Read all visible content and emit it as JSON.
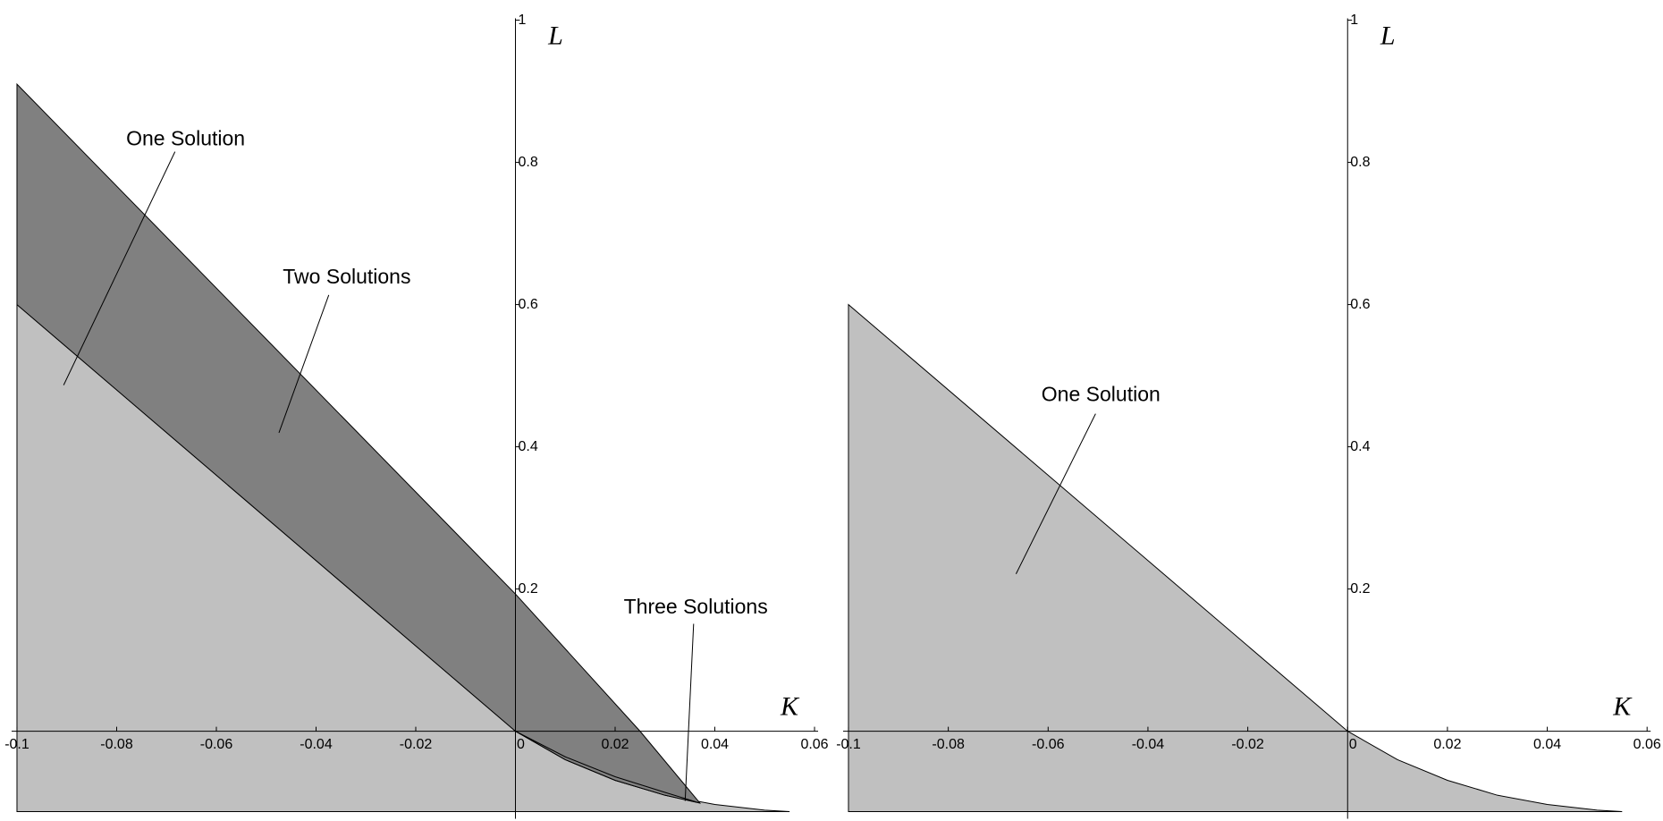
{
  "chart_data": [
    {
      "type": "region",
      "xlabel": "K",
      "ylabel": "L",
      "xlim": [
        -0.1,
        0.06
      ],
      "ylim": [
        -0.113,
        1
      ],
      "xticks": [
        -0.1,
        -0.08,
        -0.06,
        -0.04,
        -0.02,
        0,
        0.02,
        0.04,
        0.06
      ],
      "yticks": [
        0.2,
        0.4,
        0.6,
        0.8,
        1
      ],
      "series": [
        {
          "color": "#c0c0c0",
          "x": [
            -0.1,
            -0.1,
            0,
            0.01,
            0.02,
            0.03,
            0.04,
            0.05,
            0.055
          ],
          "values": [
            -0.113,
            0.6,
            0,
            -0.04,
            -0.069,
            -0.09,
            -0.103,
            -0.111,
            -0.113
          ]
        },
        {
          "color": "#808080",
          "x": [
            -0.1,
            -0.1,
            0,
            0.025,
            0.037,
            0.03,
            0.02,
            0.01,
            0
          ],
          "values": [
            0.6,
            0.91,
            0.193,
            0,
            -0.101,
            -0.09,
            -0.069,
            -0.04,
            0
          ]
        },
        {
          "color": "#808080",
          "x": [
            0,
            0.01,
            0.02,
            0.03,
            0.037,
            0.03,
            0.02,
            0.01
          ],
          "values": [
            0,
            -0.036,
            -0.064,
            -0.086,
            -0.101,
            -0.09,
            -0.069,
            -0.04
          ]
        }
      ],
      "annotations": [
        {
          "text": "One Solution"
        },
        {
          "text": "Two Solutions"
        },
        {
          "text": "Three Solutions"
        }
      ]
    },
    {
      "type": "region",
      "xlabel": "K",
      "ylabel": "L",
      "xlim": [
        -0.1,
        0.06
      ],
      "ylim": [
        -0.113,
        1
      ],
      "xticks": [
        -0.1,
        -0.08,
        -0.06,
        -0.04,
        -0.02,
        0,
        0.02,
        0.04,
        0.06
      ],
      "yticks": [
        0.2,
        0.4,
        0.6,
        0.8,
        1
      ],
      "series": [
        {
          "color": "#c0c0c0",
          "x": [
            -0.1,
            -0.1,
            0,
            0.01,
            0.02,
            0.03,
            0.04,
            0.05,
            0.055
          ],
          "values": [
            -0.113,
            0.6,
            0,
            -0.04,
            -0.069,
            -0.09,
            -0.103,
            -0.111,
            -0.113
          ]
        }
      ],
      "annotations": [
        {
          "text": "One Solution"
        }
      ]
    }
  ]
}
